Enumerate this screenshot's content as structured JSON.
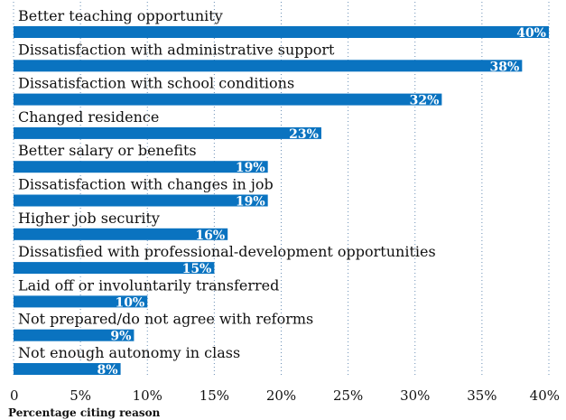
{
  "chart_data": {
    "type": "bar",
    "orientation": "horizontal",
    "categories": [
      "Better teaching opportunity",
      "Dissatisfaction with administrative support",
      "Dissatisfaction with school conditions",
      "Changed residence",
      "Better salary or benefits",
      "Dissatisfaction with changes in job",
      "Higher job security",
      "Dissatisfied with professional-development opportunities",
      "Laid off or involuntarily transferred",
      "Not prepared/do not agree with reforms",
      "Not enough autonomy in class"
    ],
    "values": [
      40,
      38,
      32,
      23,
      19,
      19,
      16,
      15,
      10,
      9,
      8
    ],
    "value_labels": [
      "40%",
      "38%",
      "32%",
      "23%",
      "19%",
      "19%",
      "16%",
      "15%",
      "10%",
      "9%",
      "8%"
    ],
    "xlabel": "Percentage citing reason",
    "xlim": [
      0,
      40
    ],
    "ticks": [
      0,
      5,
      10,
      15,
      20,
      25,
      30,
      35,
      40
    ],
    "tick_labels": [
      "0",
      "5%",
      "10%",
      "15%",
      "20%",
      "25%",
      "30%",
      "35%",
      "40%"
    ],
    "grid": "vertical dotted",
    "bar_color": "#0a73c0"
  }
}
